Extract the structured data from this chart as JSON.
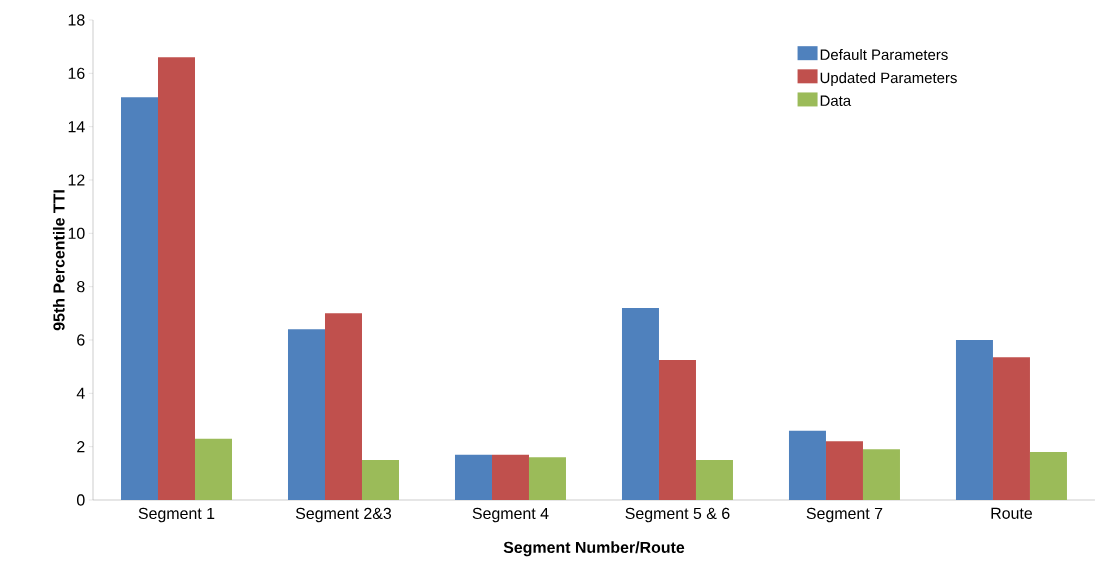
{
  "chart_data": {
    "type": "bar",
    "xlabel": "Segment Number/Route",
    "ylabel": "95th Percentile TTI",
    "categories": [
      "Segment 1",
      "Segment 2&3",
      "Segment 4",
      "Segment 5 & 6",
      "Segment 7",
      "Route"
    ],
    "series": [
      {
        "name": "Default Parameters",
        "color": "#4f81bd",
        "values": [
          15.1,
          6.4,
          1.7,
          7.2,
          2.6,
          6.0
        ]
      },
      {
        "name": "Updated Parameters",
        "color": "#c0504d",
        "values": [
          16.6,
          7.0,
          1.7,
          5.25,
          2.2,
          5.35
        ]
      },
      {
        "name": "Data",
        "color": "#9bbb59",
        "values": [
          2.3,
          1.5,
          1.6,
          1.5,
          1.9,
          1.8
        ]
      }
    ],
    "ylim": [
      0,
      18
    ],
    "yticks": [
      0,
      2,
      4,
      6,
      8,
      10,
      12,
      14,
      16,
      18
    ],
    "legend": "top right"
  }
}
